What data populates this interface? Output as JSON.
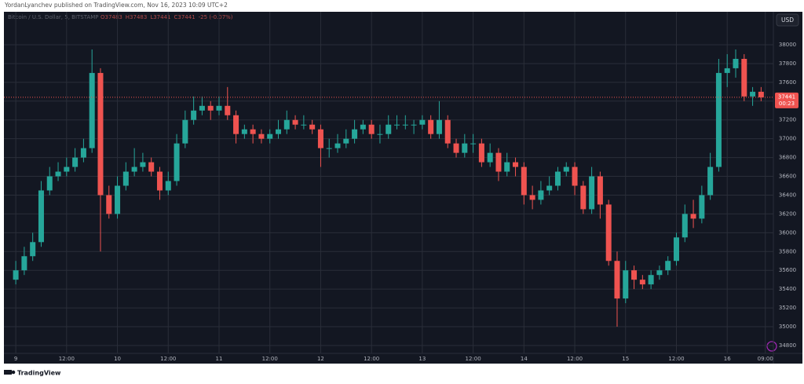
{
  "header": {
    "byline": "YordanLyanchev published on TradingView.com, Nov 16, 2023 10:09 UTC+2",
    "symbol": "Bitcoin / U.S. Dollar, 5, BITSTAMP",
    "ohlc": [
      "O37483",
      "H37483",
      "L37441",
      "C37441",
      "-25 (-0.07%)"
    ],
    "currency": "USD",
    "countdown": "00:23"
  },
  "footer": {
    "brand": "TradingView"
  },
  "chart_data": {
    "type": "candlestick",
    "up_color": "#26a69a",
    "down_color": "#ef5350",
    "grid": true,
    "xlim": [
      -2.8,
      178.9
    ],
    "ylim": [
      34716,
      38351
    ],
    "xticks": [
      {
        "value": 0,
        "label": "9"
      },
      {
        "value": 12,
        "label": "12:00"
      },
      {
        "value": 24,
        "label": "10"
      },
      {
        "value": 36,
        "label": "12:00"
      },
      {
        "value": 48,
        "label": "11"
      },
      {
        "value": 60,
        "label": "12:00"
      },
      {
        "value": 72,
        "label": "12"
      },
      {
        "value": 84,
        "label": "12:00"
      },
      {
        "value": 96,
        "label": "13"
      },
      {
        "value": 108,
        "label": "12:00"
      },
      {
        "value": 120,
        "label": "14"
      },
      {
        "value": 132,
        "label": "12:00"
      },
      {
        "value": 144,
        "label": "15"
      },
      {
        "value": 156,
        "label": "12:00"
      },
      {
        "value": 168,
        "label": "16"
      },
      {
        "value": 177,
        "label": "09:00"
      }
    ],
    "yticks": [
      34800,
      35000,
      35200,
      35400,
      35600,
      35800,
      36000,
      36200,
      36400,
      36600,
      36800,
      37000,
      37200,
      37400,
      37600,
      37800,
      38000
    ],
    "x": [
      0,
      2,
      4,
      6,
      8,
      10,
      12,
      14,
      16,
      18,
      20,
      22,
      24,
      26,
      28,
      30,
      32,
      34,
      36,
      38,
      40,
      42,
      44,
      46,
      48,
      50,
      52,
      54,
      56,
      58,
      60,
      62,
      64,
      66,
      68,
      70,
      72,
      74,
      76,
      78,
      80,
      82,
      84,
      86,
      88,
      90,
      92,
      94,
      96,
      98,
      100,
      102,
      104,
      106,
      108,
      110,
      112,
      114,
      116,
      118,
      120,
      122,
      124,
      126,
      128,
      130,
      132,
      134,
      136,
      138,
      140,
      142,
      144,
      146,
      148,
      150,
      152,
      154,
      156,
      158,
      160,
      162,
      164,
      166,
      168,
      170,
      172,
      174,
      176
    ],
    "open": [
      35500,
      35600,
      35750,
      35900,
      36450,
      36600,
      36650,
      36700,
      36800,
      36900,
      37700,
      36400,
      36200,
      36500,
      36650,
      36700,
      36750,
      36650,
      36450,
      36550,
      36950,
      37200,
      37300,
      37350,
      37300,
      37350,
      37250,
      37050,
      37100,
      37050,
      37000,
      37050,
      37100,
      37200,
      37150,
      37150,
      37100,
      36900,
      36900,
      36950,
      37000,
      37100,
      37150,
      37050,
      37050,
      37150,
      37150,
      37150,
      37150,
      37200,
      37050,
      37200,
      36950,
      36850,
      36950,
      36950,
      36750,
      36850,
      36650,
      36750,
      36700,
      36400,
      36350,
      36450,
      36500,
      36650,
      36700,
      36500,
      36250,
      36600,
      36300,
      35700,
      35300,
      35600,
      35500,
      35450,
      35550,
      35600,
      35700,
      35950,
      36200,
      36150,
      36400,
      36700,
      37700,
      37750,
      37850,
      37450,
      37500
    ],
    "high": [
      35700,
      35850,
      36000,
      36550,
      36700,
      36750,
      36800,
      36900,
      37000,
      37950,
      37750,
      36500,
      36600,
      36750,
      36900,
      36850,
      36800,
      36700,
      36650,
      37050,
      37300,
      37450,
      37450,
      37400,
      37450,
      37550,
      37300,
      37150,
      37150,
      37100,
      37100,
      37200,
      37300,
      37250,
      37250,
      37200,
      37150,
      37000,
      37050,
      37100,
      37200,
      37200,
      37200,
      37150,
      37250,
      37250,
      37250,
      37200,
      37250,
      37250,
      37400,
      37250,
      37000,
      37050,
      37050,
      37000,
      36950,
      36900,
      36850,
      36800,
      36750,
      36500,
      36550,
      36600,
      36700,
      36750,
      36750,
      36550,
      36700,
      36650,
      36350,
      35800,
      35700,
      35650,
      35550,
      35600,
      35650,
      35750,
      36000,
      36300,
      36350,
      36500,
      36850,
      37850,
      37900,
      37950,
      37900,
      37550,
      37550
    ],
    "low": [
      35450,
      35550,
      35700,
      35850,
      36400,
      36550,
      36600,
      36650,
      36750,
      36850,
      35800,
      36150,
      36150,
      36450,
      36600,
      36650,
      36600,
      36350,
      36400,
      36500,
      36900,
      37150,
      37250,
      37200,
      37250,
      37200,
      36950,
      37000,
      36950,
      36950,
      36950,
      37000,
      37050,
      37100,
      37100,
      37050,
      36700,
      36800,
      36850,
      36900,
      36950,
      37050,
      37000,
      36950,
      37000,
      37100,
      37100,
      37050,
      37100,
      37000,
      37000,
      36900,
      36800,
      36800,
      36850,
      36700,
      36700,
      36550,
      36600,
      36600,
      36300,
      36250,
      36300,
      36400,
      36450,
      36600,
      36400,
      36200,
      36200,
      36150,
      35650,
      35000,
      35250,
      35400,
      35400,
      35400,
      35500,
      35550,
      35650,
      35900,
      36050,
      36100,
      36350,
      36650,
      37550,
      37650,
      37400,
      37350,
      37400
    ],
    "close": [
      35600,
      35750,
      35900,
      36450,
      36600,
      36650,
      36700,
      36800,
      36900,
      37700,
      36400,
      36200,
      36500,
      36650,
      36700,
      36750,
      36650,
      36450,
      36550,
      36950,
      37200,
      37300,
      37350,
      37300,
      37350,
      37250,
      37050,
      37100,
      37050,
      37000,
      37050,
      37100,
      37200,
      37150,
      37150,
      37100,
      36900,
      36900,
      36950,
      37000,
      37100,
      37150,
      37050,
      37050,
      37150,
      37150,
      37150,
      37150,
      37200,
      37050,
      37200,
      36950,
      36850,
      36950,
      36950,
      36750,
      36850,
      36650,
      36750,
      36700,
      36400,
      36350,
      36450,
      36500,
      36650,
      36700,
      36500,
      36250,
      36600,
      36300,
      35700,
      35300,
      35600,
      35500,
      35450,
      35550,
      35600,
      35700,
      35950,
      36200,
      36150,
      36400,
      36700,
      37700,
      37750,
      37850,
      37450,
      37500,
      37441
    ]
  }
}
